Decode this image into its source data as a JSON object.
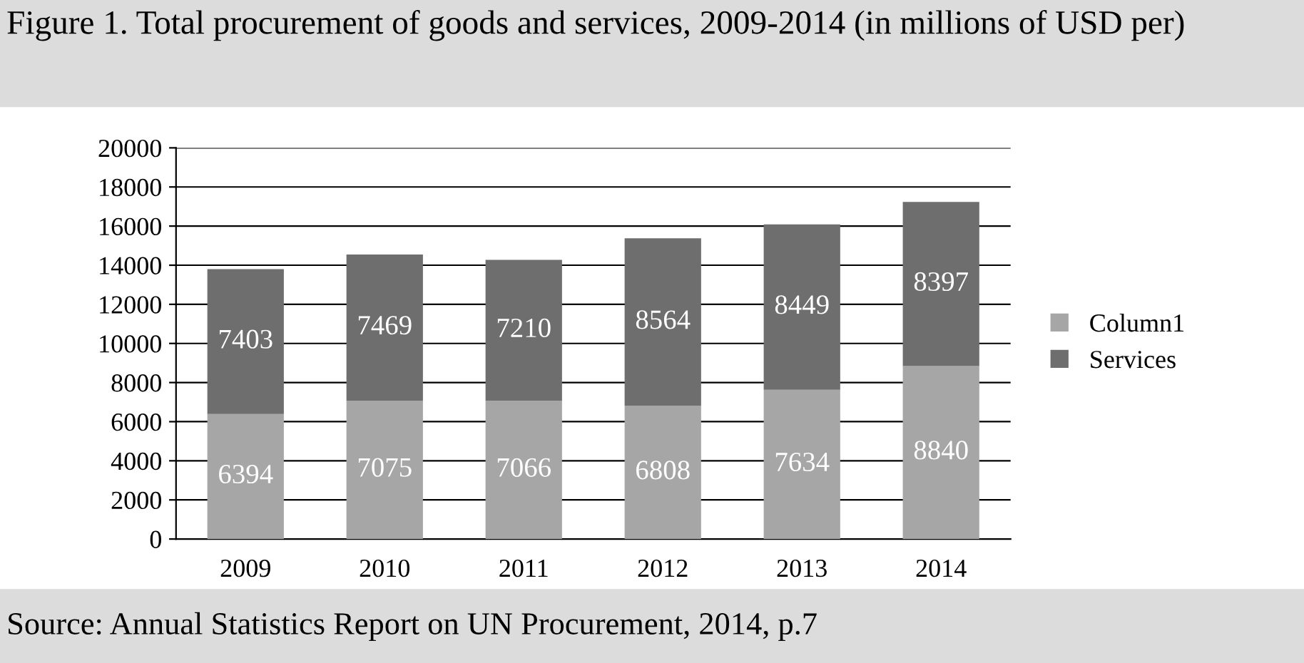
{
  "chart_data": {
    "type": "bar",
    "title": "Figure 1. Total procurement of goods and services, 2009-2014 (in millions of USD per)",
    "categories": [
      "2009",
      "2010",
      "2011",
      "2012",
      "2013",
      "2014"
    ],
    "series": [
      {
        "name": "Column1",
        "color": "#a6a6a6",
        "values": [
          6394,
          7075,
          7066,
          6808,
          7634,
          8840
        ]
      },
      {
        "name": "Services",
        "color": "#6e6e6e",
        "values": [
          7403,
          7469,
          7210,
          8564,
          8449,
          8397
        ]
      }
    ],
    "stacked": true,
    "data_labels": true,
    "ylim": [
      0,
      20000
    ],
    "yticks": [
      0,
      2000,
      4000,
      6000,
      8000,
      10000,
      12000,
      14000,
      16000,
      18000,
      20000
    ],
    "grid": "y",
    "legend": "right",
    "annotations": [
      "Source: Annual Statistics Report on UN Procurement, 2014, p.7"
    ]
  }
}
